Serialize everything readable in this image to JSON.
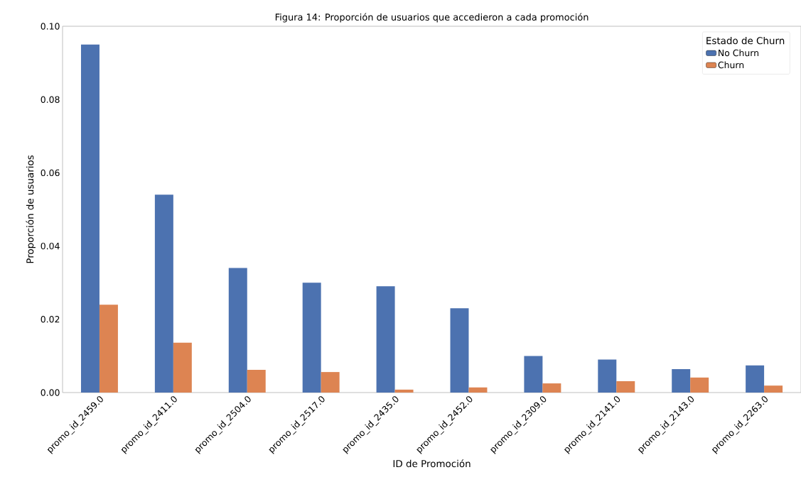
{
  "chart_data": {
    "type": "bar",
    "title": "Figura 14: Proporción de usuarios que accedieron a cada promoción",
    "xlabel": "ID de Promoción",
    "ylabel": "Proporción de usuarios",
    "legend_title": "Estado de Churn",
    "categories": [
      "promo_id_2459.0",
      "promo_id_2411.0",
      "promo_id_2504.0",
      "promo_id_2517.0",
      "promo_id_2435.0",
      "promo_id_2452.0",
      "promo_id_2309.0",
      "promo_id_2141.0",
      "promo_id_2143.0",
      "promo_id_2263.0"
    ],
    "series": [
      {
        "name": "No Churn",
        "color": "#4c72b0",
        "values": [
          0.095,
          0.054,
          0.034,
          0.03,
          0.029,
          0.023,
          0.01,
          0.009,
          0.0064,
          0.0074
        ]
      },
      {
        "name": "Churn",
        "color": "#dd8452",
        "values": [
          0.024,
          0.0136,
          0.0062,
          0.0056,
          0.0008,
          0.0014,
          0.0025,
          0.0031,
          0.0041,
          0.0019
        ]
      }
    ],
    "ylim": [
      0,
      0.1
    ],
    "yticks": [
      {
        "value": 0,
        "label": "0.00"
      },
      {
        "value": 0.02,
        "label": "0.02"
      },
      {
        "value": 0.04,
        "label": "0.04"
      },
      {
        "value": 0.06,
        "label": "0.06"
      },
      {
        "value": 0.08,
        "label": "0.08"
      },
      {
        "value": 0.1,
        "label": "0.10"
      }
    ],
    "legend": "top right",
    "grid": false
  }
}
